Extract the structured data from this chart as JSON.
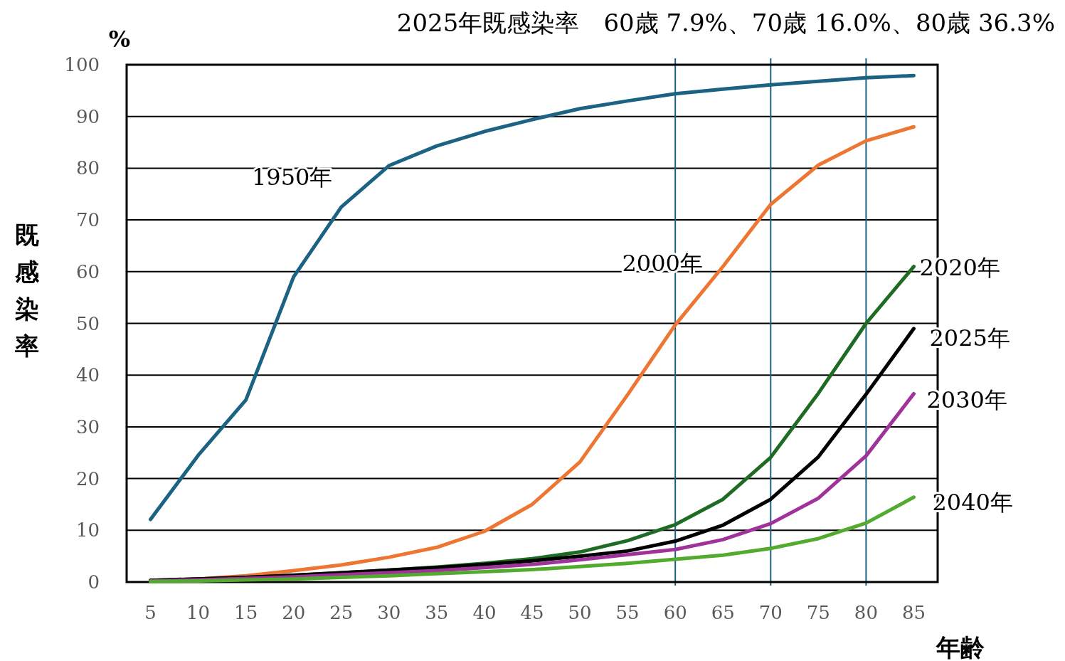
{
  "chart_data": {
    "type": "line",
    "title": "2025年既感染率　60歳 7.9%、70歳 16.0%、80歳 36.3%",
    "xlabel": "年齢",
    "ylabel": "既感染率",
    "annotations": [
      "%"
    ],
    "x": [
      5,
      10,
      15,
      20,
      25,
      30,
      35,
      40,
      45,
      50,
      55,
      60,
      65,
      70,
      75,
      80,
      85
    ],
    "xlim": [
      2.5,
      87.5
    ],
    "xticks": [
      5,
      10,
      15,
      20,
      25,
      30,
      35,
      40,
      45,
      50,
      55,
      60,
      65,
      70,
      75,
      80,
      85
    ],
    "ylim": [
      0,
      100
    ],
    "yticks": [
      0,
      10,
      20,
      30,
      40,
      50,
      60,
      70,
      80,
      90,
      100
    ],
    "grid": "y",
    "marker": "none",
    "line_style": "solid",
    "ref_lines": [
      {
        "axis": "x",
        "value": 60,
        "color": "#1b6283"
      },
      {
        "axis": "x",
        "value": 70,
        "color": "#1b6283"
      },
      {
        "axis": "x",
        "value": 80,
        "color": "#1b6283"
      }
    ],
    "series": [
      {
        "name": "1950年",
        "color": "#1b6283",
        "values": [
          12.1,
          24.5,
          35.2,
          59,
          72.5,
          80.5,
          84.3,
          87.1,
          89.4,
          91.5,
          93,
          94.4,
          95.3,
          96.1,
          96.8,
          97.5,
          97.9
        ]
      },
      {
        "name": "2000年",
        "color": "#ed7633",
        "values": [
          0.2,
          0.6,
          1.2,
          2.2,
          3.3,
          4.8,
          6.7,
          9.8,
          15,
          23.2,
          36.2,
          49.7,
          61,
          73,
          80.6,
          85.3,
          88
        ]
      },
      {
        "name": "2020年",
        "color": "#1e6b23",
        "values": [
          0.3,
          0.6,
          0.9,
          1.3,
          1.8,
          2.3,
          2.9,
          3.6,
          4.5,
          5.8,
          8,
          11.1,
          16,
          24.1,
          36.5,
          50,
          61
        ]
      },
      {
        "name": "2025年",
        "color": "#000000",
        "values": [
          0.3,
          0.6,
          0.9,
          1.3,
          1.8,
          2.3,
          2.8,
          3.4,
          4.1,
          5,
          6,
          7.9,
          11,
          16,
          24.2,
          36.3,
          49
        ]
      },
      {
        "name": "2030年",
        "color": "#a03399",
        "values": [
          0.2,
          0.4,
          0.7,
          1,
          1.4,
          1.8,
          2.2,
          2.8,
          3.4,
          4.3,
          5.3,
          6.3,
          8.2,
          11.3,
          16.2,
          24.4,
          36.4
        ]
      },
      {
        "name": "2040年",
        "color": "#52ab2f",
        "values": [
          0.1,
          0.2,
          0.4,
          0.6,
          0.9,
          1.2,
          1.6,
          2,
          2.4,
          3,
          3.6,
          4.4,
          5.2,
          6.5,
          8.4,
          11.4,
          16.4
        ]
      }
    ]
  }
}
